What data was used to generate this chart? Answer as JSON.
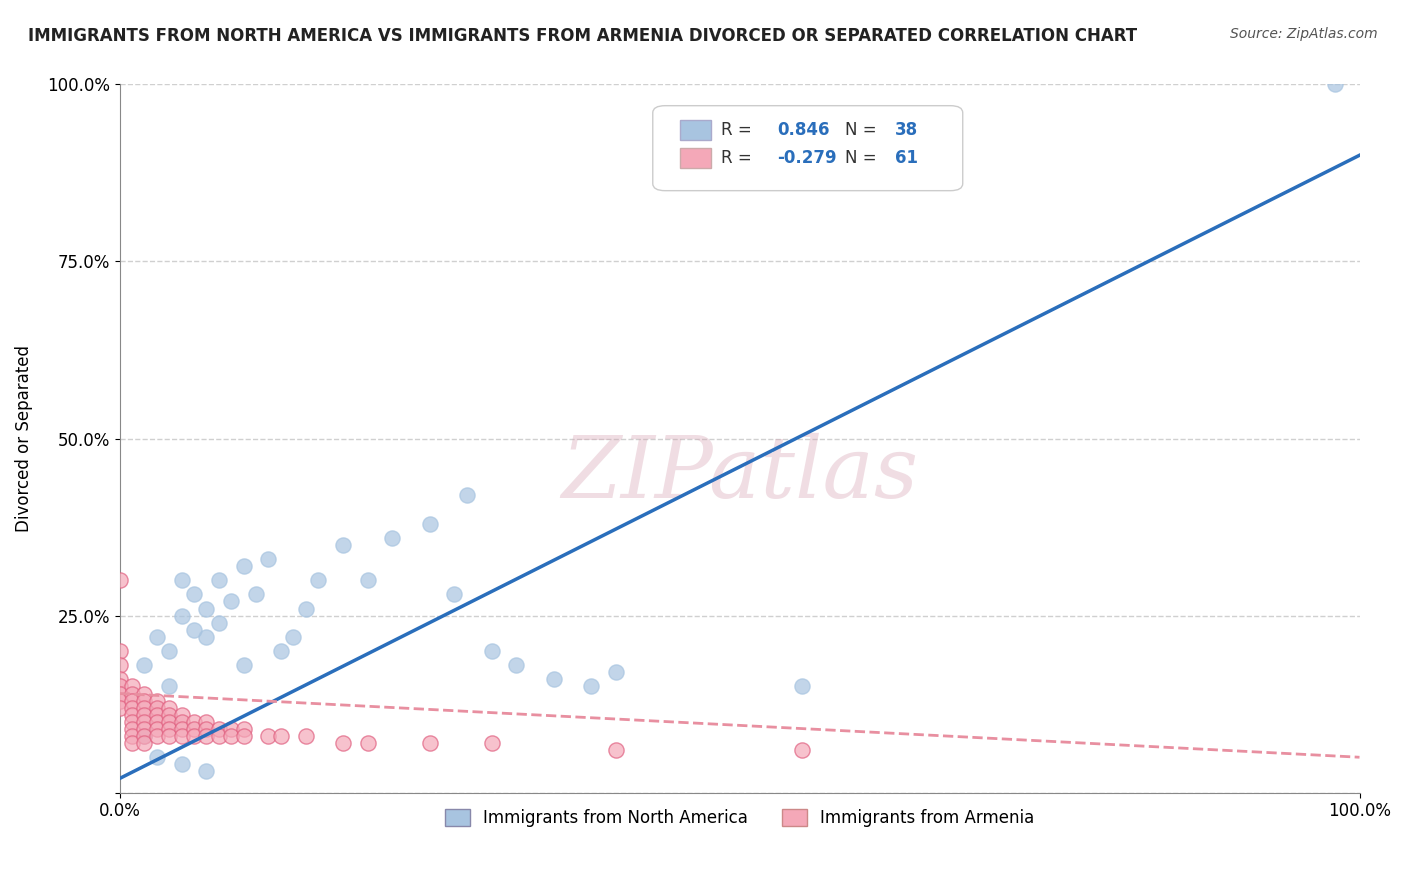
{
  "title": "IMMIGRANTS FROM NORTH AMERICA VS IMMIGRANTS FROM ARMENIA DIVORCED OR SEPARATED CORRELATION CHART",
  "source": "Source: ZipAtlas.com",
  "ylabel": "Divorced or Separated",
  "xlabel": "",
  "watermark": "ZIPatlas",
  "blue_R": 0.846,
  "blue_N": 38,
  "pink_R": -0.279,
  "pink_N": 61,
  "blue_color": "#a8c4e0",
  "pink_color": "#f4a8b8",
  "blue_line_color": "#2a6ebb",
  "pink_line_color": "#e88fa0",
  "legend_label_blue": "Immigrants from North America",
  "legend_label_pink": "Immigrants from Armenia",
  "blue_scatter": [
    [
      0.02,
      0.18
    ],
    [
      0.03,
      0.22
    ],
    [
      0.04,
      0.15
    ],
    [
      0.04,
      0.2
    ],
    [
      0.05,
      0.25
    ],
    [
      0.05,
      0.3
    ],
    [
      0.06,
      0.23
    ],
    [
      0.06,
      0.28
    ],
    [
      0.07,
      0.22
    ],
    [
      0.07,
      0.26
    ],
    [
      0.08,
      0.24
    ],
    [
      0.08,
      0.3
    ],
    [
      0.09,
      0.27
    ],
    [
      0.1,
      0.32
    ],
    [
      0.1,
      0.18
    ],
    [
      0.11,
      0.28
    ],
    [
      0.12,
      0.33
    ],
    [
      0.13,
      0.2
    ],
    [
      0.14,
      0.22
    ],
    [
      0.15,
      0.26
    ],
    [
      0.16,
      0.3
    ],
    [
      0.18,
      0.35
    ],
    [
      0.2,
      0.3
    ],
    [
      0.22,
      0.36
    ],
    [
      0.25,
      0.38
    ],
    [
      0.27,
      0.28
    ],
    [
      0.28,
      0.42
    ],
    [
      0.3,
      0.2
    ],
    [
      0.32,
      0.18
    ],
    [
      0.35,
      0.16
    ],
    [
      0.38,
      0.15
    ],
    [
      0.4,
      0.17
    ],
    [
      0.55,
      0.15
    ],
    [
      0.02,
      0.08
    ],
    [
      0.03,
      0.05
    ],
    [
      0.05,
      0.04
    ],
    [
      0.07,
      0.03
    ],
    [
      0.98,
      1.0
    ]
  ],
  "pink_scatter": [
    [
      0.0,
      0.3
    ],
    [
      0.0,
      0.2
    ],
    [
      0.0,
      0.18
    ],
    [
      0.0,
      0.16
    ],
    [
      0.0,
      0.15
    ],
    [
      0.0,
      0.14
    ],
    [
      0.0,
      0.13
    ],
    [
      0.0,
      0.12
    ],
    [
      0.01,
      0.15
    ],
    [
      0.01,
      0.14
    ],
    [
      0.01,
      0.13
    ],
    [
      0.01,
      0.12
    ],
    [
      0.01,
      0.11
    ],
    [
      0.01,
      0.1
    ],
    [
      0.01,
      0.09
    ],
    [
      0.01,
      0.08
    ],
    [
      0.01,
      0.07
    ],
    [
      0.02,
      0.14
    ],
    [
      0.02,
      0.13
    ],
    [
      0.02,
      0.12
    ],
    [
      0.02,
      0.11
    ],
    [
      0.02,
      0.1
    ],
    [
      0.02,
      0.09
    ],
    [
      0.02,
      0.08
    ],
    [
      0.02,
      0.07
    ],
    [
      0.03,
      0.13
    ],
    [
      0.03,
      0.12
    ],
    [
      0.03,
      0.11
    ],
    [
      0.03,
      0.1
    ],
    [
      0.03,
      0.09
    ],
    [
      0.03,
      0.08
    ],
    [
      0.04,
      0.12
    ],
    [
      0.04,
      0.11
    ],
    [
      0.04,
      0.1
    ],
    [
      0.04,
      0.09
    ],
    [
      0.04,
      0.08
    ],
    [
      0.05,
      0.11
    ],
    [
      0.05,
      0.1
    ],
    [
      0.05,
      0.09
    ],
    [
      0.05,
      0.08
    ],
    [
      0.06,
      0.1
    ],
    [
      0.06,
      0.09
    ],
    [
      0.06,
      0.08
    ],
    [
      0.07,
      0.1
    ],
    [
      0.07,
      0.09
    ],
    [
      0.07,
      0.08
    ],
    [
      0.08,
      0.09
    ],
    [
      0.08,
      0.08
    ],
    [
      0.09,
      0.09
    ],
    [
      0.09,
      0.08
    ],
    [
      0.1,
      0.09
    ],
    [
      0.1,
      0.08
    ],
    [
      0.12,
      0.08
    ],
    [
      0.13,
      0.08
    ],
    [
      0.15,
      0.08
    ],
    [
      0.18,
      0.07
    ],
    [
      0.2,
      0.07
    ],
    [
      0.25,
      0.07
    ],
    [
      0.3,
      0.07
    ],
    [
      0.4,
      0.06
    ],
    [
      0.55,
      0.06
    ]
  ],
  "blue_line": [
    [
      0.0,
      0.02
    ],
    [
      1.0,
      0.9
    ]
  ],
  "pink_line": [
    [
      0.0,
      0.14
    ],
    [
      1.0,
      0.05
    ]
  ],
  "yticks": [
    0.0,
    0.25,
    0.5,
    0.75,
    1.0
  ],
  "ytick_labels": [
    "",
    "25.0%",
    "50.0%",
    "75.0%",
    "100.0%"
  ],
  "xticks": [
    0.0,
    1.0
  ],
  "xtick_labels": [
    "0.0%",
    "100.0%"
  ],
  "grid_color": "#d0d0d0",
  "background_color": "#ffffff"
}
